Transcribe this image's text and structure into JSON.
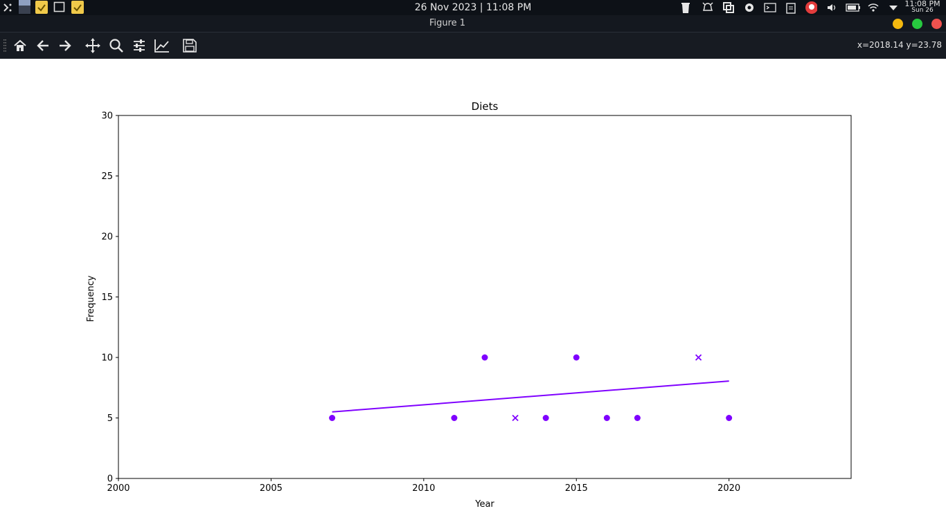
{
  "taskbar": {
    "datetime": "26 Nov 2023 | 11:08 PM",
    "tray_time": "11:08 PM",
    "tray_date": "Sun 26",
    "icons": [
      "apps-launcher-icon",
      "window-thumbnail-icon",
      "notes-icon",
      "window-outline-icon",
      "notes-icon"
    ],
    "tray_icons": [
      "trash-icon",
      "alarm-icon",
      "sync-icon",
      "settings-gear-icon",
      "terminal-icon",
      "clipboard-icon",
      "update-alert-icon",
      "volume-icon",
      "battery-icon",
      "wifi-icon",
      "dropdown-arrow-icon"
    ]
  },
  "window": {
    "title": "Figure 1",
    "controls": {
      "minimize_color": "#f5b90f",
      "maximize_color": "#27c93f",
      "close_color": "#f0524f"
    }
  },
  "toolbar": {
    "tools": [
      "home-icon",
      "back-arrow-icon",
      "forward-arrow-icon",
      "pan-move-icon",
      "zoom-icon",
      "configure-subplots-icon",
      "edit-axis-icon",
      "save-icon"
    ],
    "coords": "x=2018.14 y=23.78"
  },
  "chart_data": {
    "type": "scatter",
    "title": "Diets",
    "xlabel": "Year",
    "ylabel": "Frequency",
    "xlim": [
      2000,
      2024
    ],
    "ylim": [
      0,
      30
    ],
    "xticks": [
      2000,
      2005,
      2010,
      2015,
      2020
    ],
    "yticks": [
      0,
      5,
      10,
      15,
      20,
      25,
      30
    ],
    "grid": false,
    "color": "#7f00ff",
    "series": [
      {
        "marker": "circle",
        "x": [
          2007,
          2011,
          2012,
          2014,
          2015,
          2016,
          2017,
          2020
        ],
        "y": [
          5,
          5,
          10,
          5,
          10,
          5,
          5,
          5
        ]
      },
      {
        "marker": "x",
        "x": [
          2013,
          2019
        ],
        "y": [
          5,
          10
        ]
      }
    ],
    "trendline": {
      "x": [
        2007,
        2020
      ],
      "y": [
        5.5,
        8.05
      ]
    }
  }
}
